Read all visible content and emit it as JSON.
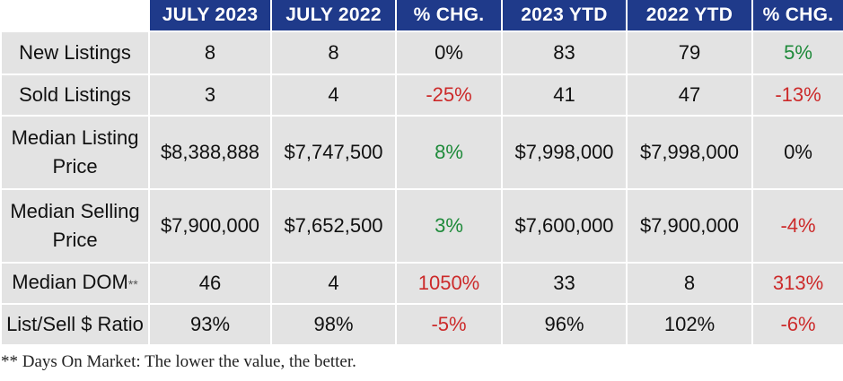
{
  "header": {
    "columns": [
      "",
      "JULY 2023",
      "JULY 2022",
      "% CHG.",
      "2023 YTD",
      "2022 YTD",
      "% CHG."
    ]
  },
  "colors": {
    "header_bg": "#1f3a8a",
    "cell_bg": "#e3e3e3",
    "positive": "#1e8a3a",
    "negative": "#cc2a2a"
  },
  "rows": [
    {
      "label": "New Listings",
      "label_suffix": "",
      "values": [
        "8",
        "8",
        "0%",
        "83",
        "79",
        "5%"
      ],
      "trend": [
        "",
        "",
        "flat",
        "",
        "",
        "up"
      ]
    },
    {
      "label": "Sold Listings",
      "label_suffix": "",
      "values": [
        "3",
        "4",
        "-25%",
        "41",
        "47",
        "-13%"
      ],
      "trend": [
        "",
        "",
        "down",
        "",
        "",
        "down"
      ]
    },
    {
      "label": "Median Listing Price",
      "label_suffix": "",
      "values": [
        "$8,388,888",
        "$7,747,500",
        "8%",
        "$7,998,000",
        "$7,998,000",
        "0%"
      ],
      "trend": [
        "",
        "",
        "up",
        "",
        "",
        "flat"
      ]
    },
    {
      "label": "Median Selling Price",
      "label_suffix": "",
      "values": [
        "$7,900,000",
        "$7,652,500",
        "3%",
        "$7,600,000",
        "$7,900,000",
        "-4%"
      ],
      "trend": [
        "",
        "",
        "up",
        "",
        "",
        "down"
      ]
    },
    {
      "label": "Median DOM",
      "label_suffix": "**",
      "values": [
        "46",
        "4",
        "1050%",
        "33",
        "8",
        "313%"
      ],
      "trend": [
        "",
        "",
        "down",
        "",
        "",
        "down"
      ]
    },
    {
      "label": "List/Sell $ Ratio",
      "label_suffix": "",
      "values": [
        "93%",
        "98%",
        "-5%",
        "96%",
        "102%",
        "-6%"
      ],
      "trend": [
        "",
        "",
        "down",
        "",
        "",
        "down"
      ]
    }
  ],
  "footnote": "** Days On Market: The lower the value, the better."
}
